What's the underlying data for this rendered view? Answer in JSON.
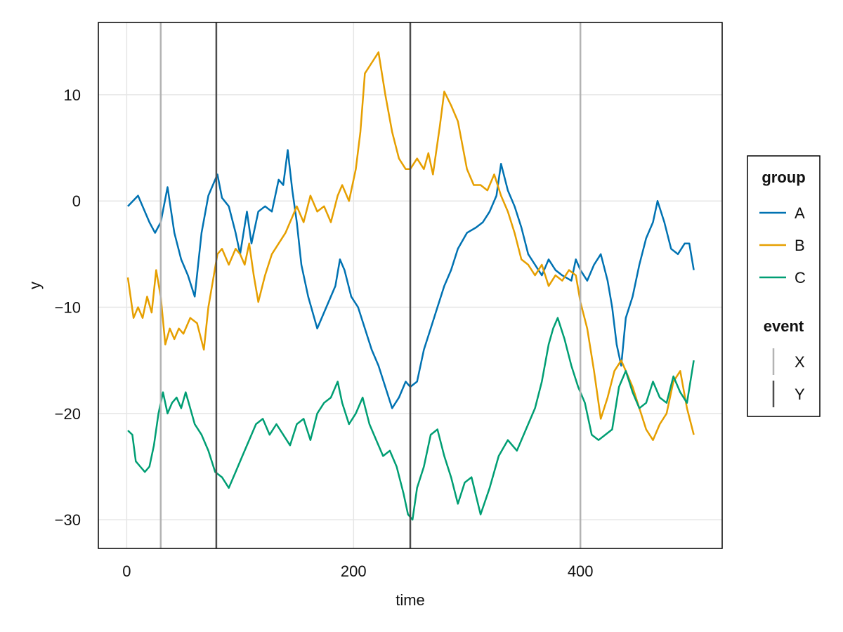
{
  "chart_data": {
    "type": "line",
    "xlabel": "time",
    "ylabel": "y",
    "xlim": [
      -25,
      525
    ],
    "ylim": [
      -32.7,
      16.8
    ],
    "xticks": [
      0,
      200,
      400
    ],
    "yticks": [
      10,
      0,
      -10,
      -20,
      -30
    ],
    "grid": true,
    "legend_position": "right",
    "series": [
      {
        "name": "A",
        "color": "#0072b2",
        "x": [
          1,
          10,
          20,
          25,
          30,
          36,
          42,
          48,
          54,
          60,
          66,
          72,
          78,
          80,
          84,
          90,
          96,
          100,
          106,
          110,
          116,
          122,
          128,
          134,
          138,
          142,
          146,
          150,
          154,
          160,
          168,
          176,
          184,
          188,
          192,
          198,
          204,
          210,
          216,
          222,
          228,
          234,
          240,
          246,
          250,
          256,
          262,
          268,
          274,
          280,
          286,
          292,
          300,
          308,
          314,
          320,
          326,
          330,
          336,
          342,
          348,
          354,
          360,
          366,
          372,
          378,
          384,
          392,
          396,
          400,
          406,
          412,
          418,
          424,
          428,
          432,
          436,
          440,
          446,
          452,
          458,
          464,
          468,
          474,
          480,
          486,
          492,
          496,
          500
        ],
        "y": [
          -0.5,
          0.5,
          -2.0,
          -3.0,
          -2.0,
          1.3,
          -3.0,
          -5.5,
          -7.0,
          -9.0,
          -3.0,
          0.5,
          2.0,
          2.5,
          0.3,
          -0.5,
          -3.0,
          -5.0,
          -1.0,
          -4.0,
          -1.0,
          -0.5,
          -1.0,
          2.0,
          1.5,
          4.8,
          1.0,
          -2.0,
          -6.0,
          -9.0,
          -12.0,
          -10.0,
          -8.0,
          -5.5,
          -6.5,
          -9.0,
          -10.0,
          -12.0,
          -14.0,
          -15.5,
          -17.5,
          -19.5,
          -18.5,
          -17.0,
          -17.5,
          -17.0,
          -14.0,
          -12.0,
          -10.0,
          -8.0,
          -6.5,
          -4.5,
          -3.0,
          -2.5,
          -2.0,
          -1.0,
          0.5,
          3.5,
          1.0,
          -0.5,
          -2.5,
          -5.0,
          -6.0,
          -7.0,
          -5.5,
          -6.5,
          -7.0,
          -7.5,
          -5.5,
          -6.5,
          -7.5,
          -6.0,
          -5.0,
          -7.5,
          -10.0,
          -13.5,
          -15.5,
          -11.0,
          -9.0,
          -6.0,
          -3.5,
          -2.0,
          0.0,
          -2.0,
          -4.5,
          -5.0,
          -4.0,
          -4.0,
          -6.5
        ]
      },
      {
        "name": "B",
        "color": "#e69f00",
        "x": [
          1,
          6,
          10,
          14,
          18,
          22,
          26,
          30,
          34,
          38,
          42,
          46,
          50,
          56,
          62,
          68,
          72,
          76,
          80,
          84,
          90,
          96,
          100,
          104,
          108,
          112,
          116,
          122,
          128,
          134,
          140,
          146,
          150,
          156,
          162,
          168,
          174,
          180,
          186,
          190,
          196,
          202,
          206,
          210,
          216,
          222,
          228,
          234,
          240,
          246,
          250,
          256,
          262,
          266,
          270,
          276,
          280,
          286,
          292,
          300,
          306,
          312,
          318,
          324,
          330,
          336,
          342,
          348,
          354,
          360,
          366,
          372,
          378,
          384,
          390,
          396,
          400,
          406,
          412,
          418,
          424,
          430,
          436,
          440,
          446,
          452,
          458,
          464,
          470,
          476,
          482,
          488,
          494,
          500
        ],
        "y": [
          -7.2,
          -11.0,
          -10.0,
          -11.0,
          -9.0,
          -10.5,
          -6.5,
          -9.0,
          -13.5,
          -12.0,
          -13.0,
          -12.0,
          -12.5,
          -11.0,
          -11.5,
          -14.0,
          -10.0,
          -7.5,
          -5.0,
          -4.5,
          -6.0,
          -4.5,
          -5.0,
          -6.0,
          -4.0,
          -7.0,
          -9.5,
          -7.0,
          -5.0,
          -4.0,
          -3.0,
          -1.5,
          -0.5,
          -2.0,
          0.5,
          -1.0,
          -0.5,
          -2.0,
          0.5,
          1.5,
          0.0,
          3.0,
          6.5,
          12.0,
          13.0,
          14.0,
          10.0,
          6.5,
          4.0,
          3.0,
          3.0,
          4.0,
          3.0,
          4.5,
          2.5,
          7.0,
          10.3,
          9.0,
          7.5,
          3.0,
          1.5,
          1.5,
          1.0,
          2.5,
          0.5,
          -1.0,
          -3.0,
          -5.5,
          -6.0,
          -7.0,
          -6.0,
          -8.0,
          -7.0,
          -7.5,
          -6.5,
          -7.0,
          -9.5,
          -12.0,
          -16.0,
          -20.5,
          -18.5,
          -16.0,
          -15.0,
          -16.0,
          -17.5,
          -19.5,
          -21.5,
          -22.5,
          -21.0,
          -20.0,
          -17.0,
          -16.0,
          -19.5,
          -22.0
        ]
      },
      {
        "name": "C",
        "color": "#009e73",
        "x": [
          1,
          5,
          8,
          12,
          16,
          20,
          24,
          28,
          32,
          36,
          40,
          44,
          48,
          52,
          56,
          60,
          66,
          72,
          78,
          84,
          90,
          96,
          102,
          108,
          114,
          120,
          126,
          132,
          138,
          144,
          150,
          156,
          162,
          168,
          174,
          180,
          186,
          190,
          196,
          202,
          208,
          214,
          220,
          226,
          232,
          238,
          244,
          248,
          252,
          256,
          262,
          268,
          274,
          280,
          286,
          292,
          298,
          304,
          312,
          320,
          328,
          336,
          344,
          352,
          360,
          366,
          372,
          376,
          380,
          386,
          392,
          398,
          404,
          410,
          416,
          422,
          428,
          434,
          440,
          446,
          452,
          458,
          464,
          470,
          476,
          482,
          488,
          494,
          500
        ],
        "y": [
          -21.6,
          -22.0,
          -24.5,
          -25.0,
          -25.5,
          -25.0,
          -23.0,
          -20.0,
          -18.0,
          -20.0,
          -19.0,
          -18.5,
          -19.5,
          -18.0,
          -19.5,
          -21.0,
          -22.0,
          -23.5,
          -25.5,
          -26.0,
          -27.0,
          -25.5,
          -24.0,
          -22.5,
          -21.0,
          -20.5,
          -22.0,
          -21.0,
          -22.0,
          -23.0,
          -21.0,
          -20.5,
          -22.5,
          -20.0,
          -19.0,
          -18.5,
          -17.0,
          -19.0,
          -21.0,
          -20.0,
          -18.5,
          -21.0,
          -22.5,
          -24.0,
          -23.5,
          -25.0,
          -27.5,
          -29.5,
          -30.0,
          -27.0,
          -25.0,
          -22.0,
          -21.5,
          -24.0,
          -26.0,
          -28.5,
          -26.5,
          -26.0,
          -29.5,
          -27.0,
          -24.0,
          -22.5,
          -23.5,
          -21.5,
          -19.5,
          -17.0,
          -13.5,
          -12.0,
          -11.0,
          -13.0,
          -15.5,
          -17.5,
          -19.0,
          -22.0,
          -22.5,
          -22.0,
          -21.5,
          -17.5,
          -16.0,
          -18.0,
          -19.5,
          -19.0,
          -17.0,
          -18.5,
          -19.0,
          -16.5,
          -18.0,
          -19.0,
          -15.0
        ]
      }
    ],
    "events": [
      {
        "group": "X",
        "color": "#b3b3b3",
        "x": [
          30,
          400
        ]
      },
      {
        "group": "Y",
        "color": "#4d4d4d",
        "x": [
          79,
          250
        ]
      }
    ]
  },
  "legend": {
    "group_title": "group",
    "group_items": [
      {
        "label": "A",
        "color": "#0072b2"
      },
      {
        "label": "B",
        "color": "#e69f00"
      },
      {
        "label": "C",
        "color": "#009e73"
      }
    ],
    "event_title": "event",
    "event_items": [
      {
        "label": "X",
        "color": "#b3b3b3"
      },
      {
        "label": "Y",
        "color": "#4d4d4d"
      }
    ]
  }
}
